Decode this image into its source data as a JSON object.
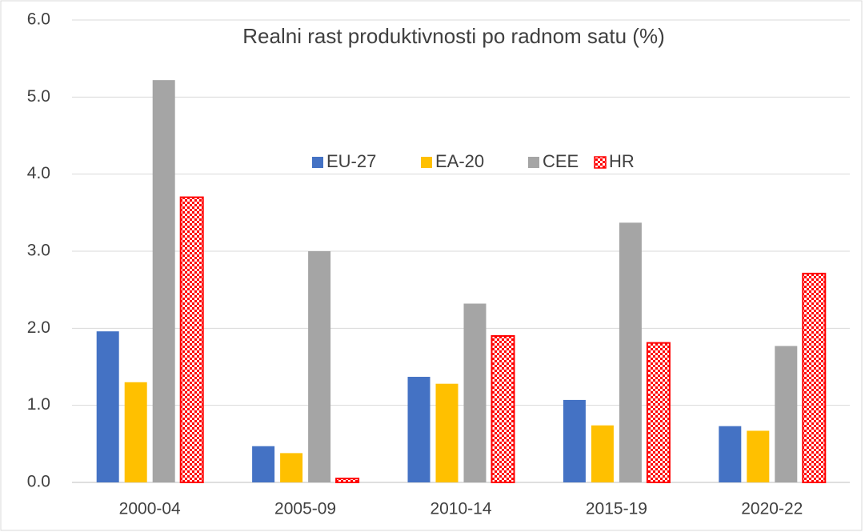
{
  "chart_data": {
    "type": "bar",
    "title": "Realni rast produktivnosti po radnom satu (%)",
    "categories": [
      "2000-04",
      "2005-09",
      "2010-14",
      "2015-19",
      "2020-22"
    ],
    "series": [
      {
        "name": "EU-27",
        "color": "#4472c4",
        "values": [
          1.96,
          0.47,
          1.37,
          1.07,
          0.73
        ]
      },
      {
        "name": "EA-20",
        "color": "#ffc000",
        "values": [
          1.3,
          0.38,
          1.28,
          0.74,
          0.67
        ]
      },
      {
        "name": "CEE",
        "color": "#a5a5a5",
        "values": [
          5.22,
          3.0,
          2.32,
          3.37,
          1.77
        ]
      },
      {
        "name": "HR",
        "color": "#ff0000",
        "pattern": "checker",
        "values": [
          3.7,
          0.05,
          1.9,
          1.81,
          2.71
        ]
      }
    ],
    "ylim": [
      0,
      6
    ],
    "yticks": [
      {
        "value": 0,
        "label": "0.0"
      },
      {
        "value": 1,
        "label": "1.0"
      },
      {
        "value": 2,
        "label": "2.0"
      },
      {
        "value": 3,
        "label": "3.0"
      },
      {
        "value": 4,
        "label": "4.0"
      },
      {
        "value": 5,
        "label": "5.0"
      },
      {
        "value": 6,
        "label": "6.0"
      }
    ],
    "grid": true,
    "legend": "top-center"
  }
}
